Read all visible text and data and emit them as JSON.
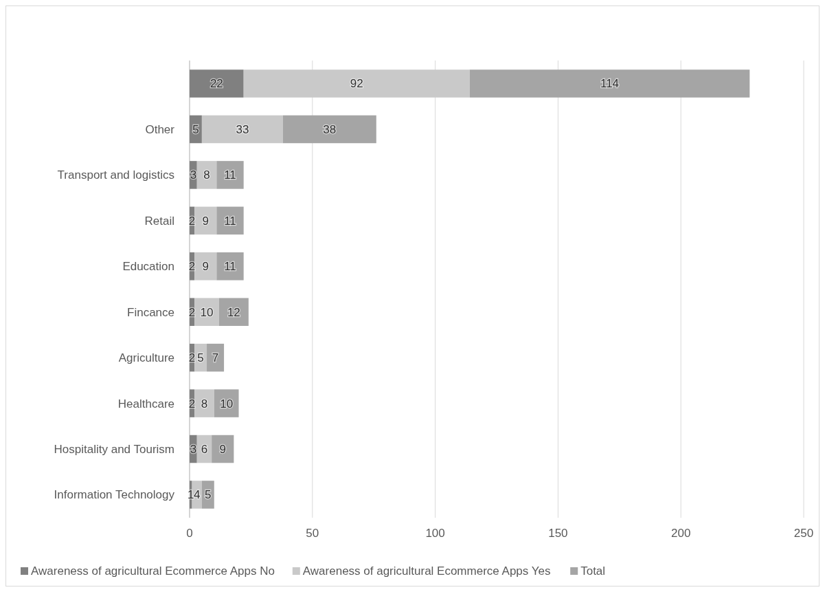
{
  "chart_data": {
    "type": "bar",
    "orientation": "horizontal",
    "stacked": true,
    "categories": [
      null,
      "Other",
      "Transport and logistics",
      "Retail",
      "Education",
      "Fincance",
      "Agriculture",
      "Healthcare",
      "Hospitality and Tourism",
      "Information Technology"
    ],
    "series": [
      {
        "name": "Awareness of agricultural Ecommerce Apps No",
        "color": "#808080",
        "values": [
          22,
          5,
          3,
          2,
          2,
          2,
          2,
          2,
          3,
          1
        ]
      },
      {
        "name": "Awareness of agricultural Ecommerce Apps Yes",
        "color": "#c9c9c9",
        "values": [
          92,
          33,
          8,
          9,
          9,
          10,
          5,
          8,
          6,
          4
        ]
      },
      {
        "name": "Total",
        "color": "#a5a5a5",
        "values": [
          114,
          38,
          11,
          11,
          11,
          12,
          7,
          10,
          9,
          5
        ]
      }
    ],
    "xlim": [
      0,
      250
    ],
    "xticks": [
      0,
      50,
      100,
      150,
      200,
      250
    ],
    "grid": "x",
    "legend": "bottom",
    "data_labels": true
  }
}
